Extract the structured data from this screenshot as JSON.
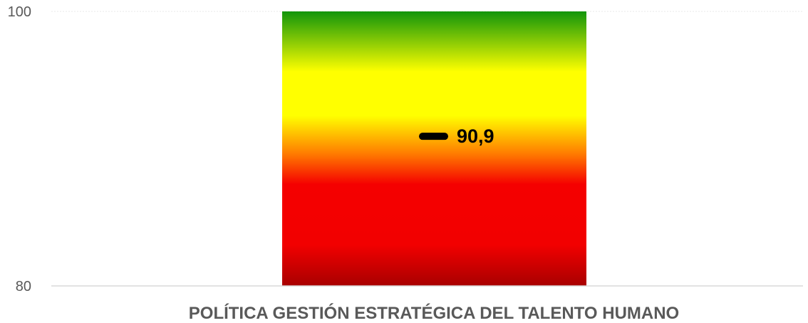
{
  "chart_data": {
    "type": "bar",
    "categories": [
      "POLÍTICA GESTIÓN ESTRATÉGICA DEL TALENTO HUMANO"
    ],
    "values": [
      100
    ],
    "ylim": [
      80,
      100
    ],
    "yticks": [
      "80",
      "100"
    ],
    "marker": {
      "value": 90.9,
      "label": "90,9"
    },
    "gradient_colors": [
      "#12950b",
      "#ffff00",
      "#ffff00",
      "#ff7a00",
      "#f50000",
      "#f20000",
      "#a80000"
    ],
    "grid": true,
    "legend": "none"
  }
}
